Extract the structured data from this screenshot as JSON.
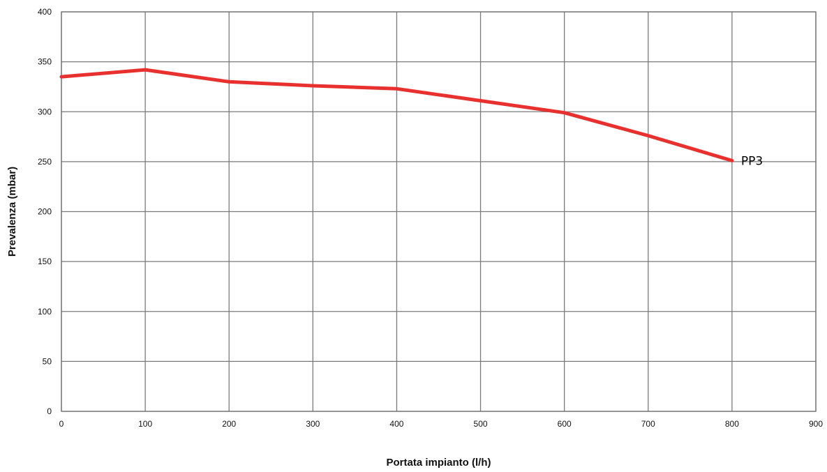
{
  "chart_data": {
    "type": "line",
    "title": "",
    "xlabel": "Portata impianto (l/h)",
    "ylabel": "Prevalenza (mbar)",
    "xlim": [
      0,
      900
    ],
    "ylim": [
      0,
      400
    ],
    "x_ticks": [
      0,
      100,
      200,
      300,
      400,
      500,
      600,
      700,
      800,
      900
    ],
    "y_ticks": [
      0,
      50,
      100,
      150,
      200,
      250,
      300,
      350,
      400
    ],
    "grid": true,
    "series": [
      {
        "name": "PP3",
        "color": "#e8312f",
        "x": [
          0,
          100,
          200,
          300,
          400,
          500,
          600,
          700,
          800
        ],
        "y": [
          335,
          342,
          330,
          326,
          323,
          311,
          299,
          276,
          251
        ]
      }
    ]
  }
}
